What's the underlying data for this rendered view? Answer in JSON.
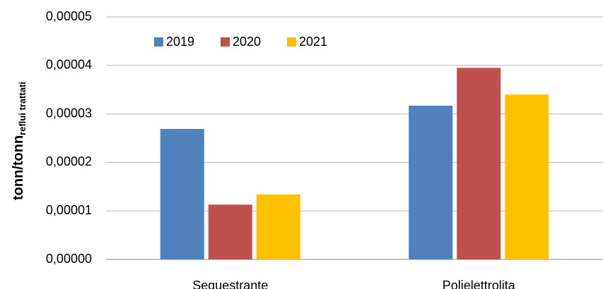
{
  "chart_data": {
    "type": "bar",
    "ylabel": "tonn/tonn",
    "ylabel_sub": "reflui trattati",
    "categories": [
      "Sequestrante",
      "Polielettrolita"
    ],
    "series": [
      {
        "name": "2019",
        "color": "#4f81bd",
        "values": [
          2.69e-05,
          3.17e-05
        ]
      },
      {
        "name": "2020",
        "color": "#c0504d",
        "values": [
          1.13e-05,
          3.95e-05
        ]
      },
      {
        "name": "2021",
        "color": "#ffc000",
        "values": [
          1.34e-05,
          3.4e-05
        ]
      }
    ],
    "ylim": [
      0,
      5e-05
    ],
    "yticks": [
      {
        "value": 0,
        "label": "0,00000"
      },
      {
        "value": 1e-05,
        "label": "0,00001"
      },
      {
        "value": 2e-05,
        "label": "0,00002"
      },
      {
        "value": 3e-05,
        "label": "0,00003"
      },
      {
        "value": 4e-05,
        "label": "0,00004"
      },
      {
        "value": 5e-05,
        "label": "0,00005"
      }
    ],
    "grid": true,
    "legend": "top-left"
  }
}
